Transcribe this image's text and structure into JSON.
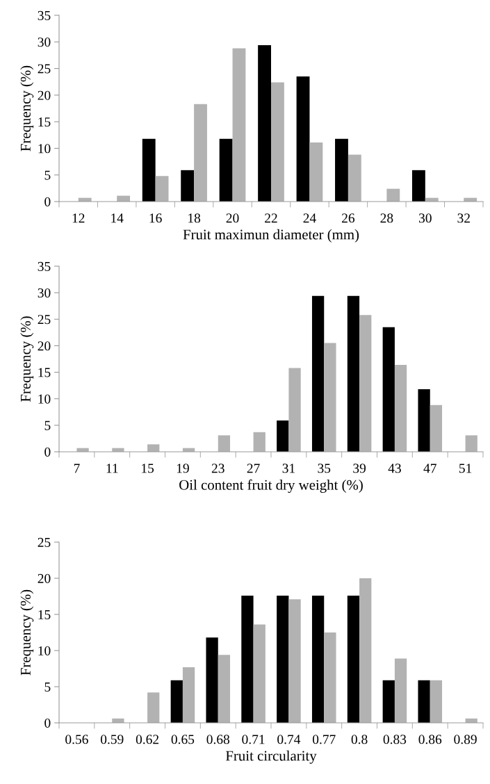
{
  "chart_data": [
    {
      "type": "bar",
      "xlabel": "Fruit maximun diameter (mm)",
      "ylabel": "Frequency (%)",
      "categories": [
        "12",
        "14",
        "16",
        "18",
        "20",
        "22",
        "24",
        "26",
        "28",
        "30",
        "32"
      ],
      "series": [
        {
          "color": "#000000",
          "values": [
            0,
            0,
            11.8,
            5.9,
            11.8,
            29.4,
            23.5,
            11.8,
            0,
            5.9,
            0
          ]
        },
        {
          "color": "#b2b2b2",
          "values": [
            0.7,
            1.1,
            4.8,
            18.3,
            28.8,
            22.4,
            11.1,
            8.8,
            2.4,
            0.7,
            0.7
          ]
        }
      ],
      "ylim": [
        0,
        35
      ],
      "yticks": [
        0,
        5,
        10,
        15,
        20,
        25,
        30,
        35
      ],
      "grid": false,
      "legend": false
    },
    {
      "type": "bar",
      "xlabel": "Oil content fruit dry weight (%)",
      "ylabel": "Frequency (%)",
      "categories": [
        "7",
        "11",
        "15",
        "19",
        "23",
        "27",
        "31",
        "35",
        "39",
        "43",
        "47",
        "51"
      ],
      "series": [
        {
          "color": "#000000",
          "values": [
            0,
            0,
            0,
            0,
            0,
            0,
            5.9,
            29.4,
            29.4,
            23.5,
            11.8,
            0
          ]
        },
        {
          "color": "#b2b2b2",
          "values": [
            0.7,
            0.7,
            1.4,
            0.7,
            3.1,
            3.7,
            15.8,
            20.5,
            25.8,
            16.4,
            8.8,
            3.1
          ]
        }
      ],
      "ylim": [
        0,
        35
      ],
      "yticks": [
        0,
        5,
        10,
        15,
        20,
        25,
        30,
        35
      ],
      "grid": false,
      "legend": false
    },
    {
      "type": "bar",
      "xlabel": "Fruit circularity",
      "ylabel": "Frequency (%)",
      "categories": [
        "0.56",
        "0.59",
        "0.62",
        "0.65",
        "0.68",
        "0.71",
        "0.74",
        "0.77",
        "0.8",
        "0.83",
        "0.86",
        "0.89"
      ],
      "series": [
        {
          "color": "#000000",
          "values": [
            0,
            0,
            0,
            5.9,
            11.8,
            17.6,
            17.6,
            17.6,
            17.6,
            5.9,
            5.9,
            0
          ]
        },
        {
          "color": "#b2b2b2",
          "values": [
            0,
            0.6,
            4.2,
            7.7,
            9.4,
            13.6,
            17.1,
            12.5,
            20.0,
            8.9,
            5.9,
            0.6
          ]
        }
      ],
      "ylim": [
        0,
        25
      ],
      "yticks": [
        0,
        5,
        10,
        15,
        20,
        25
      ],
      "grid": false,
      "legend": false
    }
  ]
}
